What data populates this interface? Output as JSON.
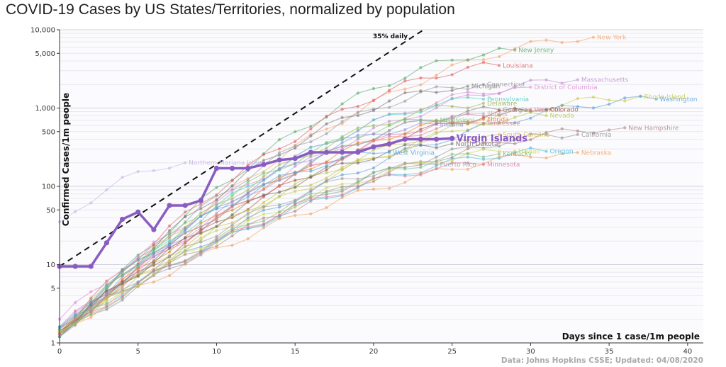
{
  "title": "COVID-19 Cases by US States/Territories, normalized by population",
  "source": "Data: Johns Hopkins CSSE; Updated: 04/08/2020",
  "chart_data": {
    "type": "line",
    "yscale": "log",
    "xlabel": "Days since 1 case/1m people",
    "ylabel": "Confirmed Cases/1m people",
    "xlim": [
      0,
      41
    ],
    "ylim": [
      1,
      10000
    ],
    "xticks": [
      0,
      5,
      10,
      15,
      20,
      25,
      30,
      35,
      40
    ],
    "yticks": [
      {
        "v": 1,
        "label": "1"
      },
      {
        "v": 5,
        "label": "5"
      },
      {
        "v": 10,
        "label": "10"
      },
      {
        "v": 50,
        "label": "50"
      },
      {
        "v": 100,
        "label": "100"
      },
      {
        "v": 500,
        "label": "500"
      },
      {
        "v": 1000,
        "label": "1,000"
      },
      {
        "v": 5000,
        "label": "5,000"
      },
      {
        "v": 10000,
        "label": "10,000"
      }
    ],
    "reference_line": {
      "label": "35% daily",
      "growth": 0.35,
      "start": 9.5
    },
    "highlight": {
      "name": "Virgin Islands",
      "color": "#8a5cc2",
      "x": [
        0,
        1,
        2,
        3,
        4,
        5,
        6,
        7,
        8,
        9,
        10,
        11,
        12,
        13,
        14,
        15,
        16,
        17,
        18,
        19,
        20,
        21,
        22,
        23,
        24,
        25
      ],
      "y": [
        9.5,
        9.5,
        9.5,
        19,
        38,
        47,
        28,
        57,
        57,
        66,
        170,
        170,
        170,
        190,
        217,
        227,
        272,
        272,
        272,
        272,
        320,
        350,
        400,
        400,
        400,
        410
      ]
    },
    "series": [
      {
        "name": "New York",
        "color": "#f4a36b",
        "start": 1.3,
        "end_day": 34,
        "end": 8000
      },
      {
        "name": "New Jersey",
        "color": "#55a868",
        "start": 1.2,
        "end_day": 29,
        "end": 5500
      },
      {
        "name": "Louisiana",
        "color": "#e05c5c",
        "start": 1.4,
        "end_day": 28,
        "end": 3500
      },
      {
        "name": "Massachusetts",
        "color": "#c48bd3",
        "start": 1.5,
        "end_day": 33,
        "end": 2300
      },
      {
        "name": "Connecticut",
        "color": "#999999",
        "start": 1.3,
        "end_day": 27,
        "end": 2000
      },
      {
        "name": "Michigan",
        "color": "#777777",
        "start": 1.2,
        "end_day": 26,
        "end": 1900
      },
      {
        "name": "District of Columbia",
        "color": "#d98ad0",
        "start": 2.0,
        "end_day": 30,
        "end": 1850
      },
      {
        "name": "Rhode Island",
        "color": "#c9c94d",
        "start": 1.5,
        "end_day": 37,
        "end": 1400
      },
      {
        "name": "Washington",
        "color": "#5b9bd5",
        "start": 1.4,
        "end_day": 38,
        "end": 1300
      },
      {
        "name": "Pennsylvania",
        "color": "#4cc9c0",
        "start": 1.2,
        "end_day": 27,
        "end": 1300
      },
      {
        "name": "Delaware",
        "color": "#99b34d",
        "start": 1.5,
        "end_day": 27,
        "end": 1150
      },
      {
        "name": "Georgia",
        "color": "#888888",
        "start": 1.3,
        "end_day": 28,
        "end": 950
      },
      {
        "name": "Vermont",
        "color": "#d46fa8",
        "start": 1.6,
        "end_day": 30,
        "end": 960
      },
      {
        "name": "Colorado",
        "color": "#a0522d",
        "start": 1.4,
        "end_day": 31,
        "end": 960
      },
      {
        "name": "Illinois",
        "color": "#aaaaaa",
        "start": 1.2,
        "end_day": 27,
        "end": 850
      },
      {
        "name": "Nevada",
        "color": "#b3c94d",
        "start": 1.3,
        "end_day": 31,
        "end": 800
      },
      {
        "name": "Florida",
        "color": "#e67e22",
        "start": 1.3,
        "end_day": 27,
        "end": 720
      },
      {
        "name": "Mississippi",
        "color": "#6bc26b",
        "start": 1.4,
        "end_day": 24,
        "end": 700
      },
      {
        "name": "Tennessee",
        "color": "#e07b7b",
        "start": 1.3,
        "end_day": 27,
        "end": 640
      },
      {
        "name": "Indiana",
        "color": "#8c8cd9",
        "start": 1.2,
        "end_day": 24,
        "end": 620
      },
      {
        "name": "New Hampshire",
        "color": "#b08080",
        "start": 1.6,
        "end_day": 36,
        "end": 560
      },
      {
        "name": "California",
        "color": "#909090",
        "start": 1.2,
        "end_day": 33,
        "end": 460
      },
      {
        "name": "South Carolina",
        "color": "#d4b84a",
        "start": 1.3,
        "end_day": 28,
        "end": 460
      },
      {
        "name": "North Dakota",
        "color": "#6a6a6a",
        "start": 1.4,
        "end_day": 25,
        "end": 350
      },
      {
        "name": "Oregon",
        "color": "#4db8d9",
        "start": 1.5,
        "end_day": 31,
        "end": 280
      },
      {
        "name": "Nebraska",
        "color": "#f0a060",
        "start": 1.4,
        "end_day": 33,
        "end": 270
      },
      {
        "name": "Hawaii",
        "color": "#c6d64d",
        "start": 1.4,
        "end_day": 29,
        "end": 280
      },
      {
        "name": "Kentucky",
        "color": "#7ab87a",
        "start": 1.2,
        "end_day": 28,
        "end": 260
      },
      {
        "name": "West Virginia",
        "color": "#4da6d9",
        "start": 1.6,
        "end_day": 21,
        "end": 270
      },
      {
        "name": "Puerto Rico",
        "color": "#999999",
        "start": 1.3,
        "end_day": 24,
        "end": 190
      },
      {
        "name": "Minnesota",
        "color": "#d97a9b",
        "start": 1.3,
        "end_day": 27,
        "end": 190
      },
      {
        "name": "Northern Mariana Islands",
        "color": "#c8b4e6",
        "start": 35,
        "end_day": 8,
        "end": 200
      }
    ]
  }
}
